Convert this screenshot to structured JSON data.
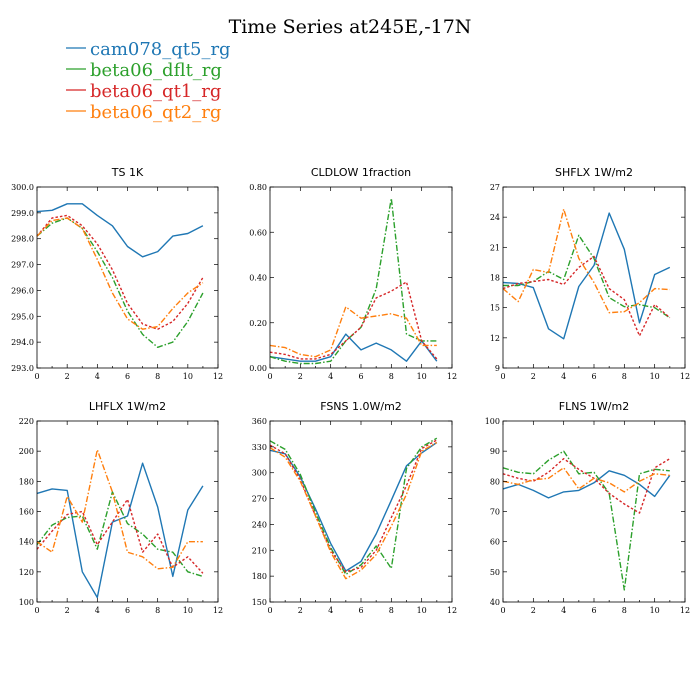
{
  "figure": {
    "title": "Time Series at245E,-17N"
  },
  "legend": [
    {
      "name": "cam078_qt5_rg",
      "color": "#1f77b4",
      "dash": ""
    },
    {
      "name": "beta06_dflt_rg",
      "color": "#2ca02c",
      "dash": "6 2 1.5 2"
    },
    {
      "name": "beta06_qt1_rg",
      "color": "#d62728",
      "dash": "2.5 2"
    },
    {
      "name": "beta06_qt2_rg",
      "color": "#ff7f0e",
      "dash": "6 2 1.5 2"
    }
  ],
  "chart_data": [
    {
      "type": "line",
      "title": "TS   1K",
      "x": [
        0,
        1,
        2,
        3,
        4,
        5,
        6,
        7,
        8,
        9,
        10,
        11
      ],
      "xlim": [
        0,
        12
      ],
      "xticks": [
        "0",
        "2",
        "4",
        "6",
        "8",
        "10",
        "12"
      ],
      "ylim": [
        293.0,
        300.0
      ],
      "yticks": [
        "293.0",
        "294.0",
        "295.0",
        "296.0",
        "297.0",
        "298.0",
        "299.0",
        "300.0"
      ],
      "series": [
        {
          "name": "cam078_qt5_rg",
          "values": [
            299.05,
            299.1,
            299.35,
            299.35,
            298.9,
            298.5,
            297.7,
            297.3,
            297.5,
            298.1,
            298.2,
            298.5
          ]
        },
        {
          "name": "beta06_dflt_rg",
          "values": [
            298.1,
            298.6,
            298.8,
            298.4,
            297.5,
            296.5,
            295.2,
            294.3,
            293.8,
            294.0,
            294.8,
            295.9
          ]
        },
        {
          "name": "beta06_qt1_rg",
          "values": [
            298.1,
            298.8,
            298.9,
            298.5,
            297.8,
            296.8,
            295.5,
            294.7,
            294.5,
            294.8,
            295.5,
            296.5
          ]
        },
        {
          "name": "beta06_qt2_rg",
          "values": [
            298.1,
            298.7,
            298.8,
            298.4,
            297.2,
            295.9,
            294.9,
            294.5,
            294.6,
            295.3,
            295.9,
            296.3
          ]
        }
      ]
    },
    {
      "type": "line",
      "title": "CLDLOW   1fraction",
      "x": [
        0,
        1,
        2,
        3,
        4,
        5,
        6,
        7,
        8,
        9,
        10,
        11
      ],
      "xlim": [
        0,
        12
      ],
      "xticks": [
        "0",
        "2",
        "4",
        "6",
        "8",
        "10",
        "12"
      ],
      "ylim": [
        0.0,
        0.8
      ],
      "yticks": [
        "0.00",
        "0.20",
        "0.40",
        "0.60",
        "0.80"
      ],
      "series": [
        {
          "name": "cam078_qt5_rg",
          "values": [
            0.05,
            0.04,
            0.03,
            0.03,
            0.05,
            0.15,
            0.08,
            0.11,
            0.08,
            0.03,
            0.12,
            0.03
          ]
        },
        {
          "name": "beta06_dflt_rg",
          "values": [
            0.05,
            0.03,
            0.02,
            0.02,
            0.03,
            0.12,
            0.18,
            0.35,
            0.75,
            0.15,
            0.12,
            0.12
          ]
        },
        {
          "name": "beta06_qt1_rg",
          "values": [
            0.07,
            0.06,
            0.04,
            0.04,
            0.06,
            0.12,
            0.18,
            0.31,
            0.34,
            0.38,
            0.12,
            0.04
          ]
        },
        {
          "name": "beta06_qt2_rg",
          "values": [
            0.1,
            0.09,
            0.06,
            0.05,
            0.08,
            0.27,
            0.22,
            0.23,
            0.24,
            0.22,
            0.1,
            0.1
          ]
        }
      ]
    },
    {
      "type": "line",
      "title": "SHFLX   1W/m2",
      "x": [
        0,
        1,
        2,
        3,
        4,
        5,
        6,
        7,
        8,
        9,
        10,
        11
      ],
      "xlim": [
        0,
        12
      ],
      "xticks": [
        "0",
        "2",
        "4",
        "6",
        "8",
        "10",
        "12"
      ],
      "ylim": [
        9,
        27
      ],
      "yticks": [
        "9",
        "12",
        "15",
        "18",
        "21",
        "24",
        "27"
      ],
      "series": [
        {
          "name": "cam078_qt5_rg",
          "values": [
            17.5,
            17.4,
            17.0,
            12.9,
            11.9,
            17.1,
            19.2,
            24.4,
            20.8,
            13.5,
            18.3,
            19.0
          ]
        },
        {
          "name": "beta06_dflt_rg",
          "values": [
            17.2,
            17.2,
            17.6,
            18.6,
            17.8,
            22.2,
            19.9,
            16.0,
            15.1,
            15.3,
            15.0,
            14.0
          ]
        },
        {
          "name": "beta06_qt1_rg",
          "values": [
            16.9,
            17.4,
            17.6,
            17.8,
            17.3,
            19.0,
            20.1,
            16.9,
            15.8,
            12.2,
            15.3,
            14.0
          ]
        },
        {
          "name": "beta06_qt2_rg",
          "values": [
            16.9,
            15.6,
            18.8,
            18.5,
            24.8,
            19.9,
            17.5,
            14.5,
            14.6,
            15.5,
            16.9,
            16.8
          ]
        }
      ]
    },
    {
      "type": "line",
      "title": "LHFLX   1W/m2",
      "x": [
        0,
        1,
        2,
        3,
        4,
        5,
        6,
        7,
        8,
        9,
        10,
        11
      ],
      "xlim": [
        0,
        12
      ],
      "xticks": [
        "0",
        "2",
        "4",
        "6",
        "8",
        "10",
        "12"
      ],
      "ylim": [
        100,
        220
      ],
      "yticks": [
        "100",
        "120",
        "140",
        "160",
        "180",
        "200",
        "220"
      ],
      "series": [
        {
          "name": "cam078_qt5_rg",
          "values": [
            172,
            175,
            174,
            120,
            103,
            153,
            157,
            192,
            163,
            117,
            161,
            177
          ]
        },
        {
          "name": "beta06_dflt_rg",
          "values": [
            138,
            151,
            156,
            157,
            135,
            173,
            152,
            145,
            135,
            133,
            120,
            117
          ]
        },
        {
          "name": "beta06_qt1_rg",
          "values": [
            135,
            147,
            158,
            160,
            138,
            153,
            168,
            133,
            145,
            123,
            130,
            119
          ]
        },
        {
          "name": "beta06_qt2_rg",
          "values": [
            140,
            133,
            170,
            153,
            201,
            173,
            133,
            130,
            122,
            123,
            140,
            140
          ]
        }
      ]
    },
    {
      "type": "line",
      "title": "FSNS   1.0W/m2",
      "x": [
        0,
        1,
        2,
        3,
        4,
        5,
        6,
        7,
        8,
        9,
        10,
        11
      ],
      "xlim": [
        0,
        12
      ],
      "xticks": [
        "0",
        "2",
        "4",
        "6",
        "8",
        "10",
        "12"
      ],
      "ylim": [
        150,
        360
      ],
      "yticks": [
        "150",
        "180",
        "210",
        "240",
        "270",
        "300",
        "330",
        "360"
      ],
      "series": [
        {
          "name": "cam078_qt5_rg",
          "values": [
            326,
            322,
            295,
            258,
            218,
            186,
            197,
            229,
            268,
            308,
            323,
            335
          ]
        },
        {
          "name": "beta06_dflt_rg",
          "values": [
            337,
            327,
            298,
            254,
            213,
            182,
            193,
            215,
            189,
            305,
            330,
            340
          ]
        },
        {
          "name": "beta06_qt1_rg",
          "values": [
            332,
            322,
            292,
            250,
            210,
            185,
            190,
            210,
            248,
            285,
            328,
            338
          ]
        },
        {
          "name": "beta06_qt2_rg",
          "values": [
            329,
            318,
            290,
            250,
            208,
            177,
            187,
            205,
            238,
            275,
            325,
            335
          ]
        }
      ]
    },
    {
      "type": "line",
      "title": "FLNS   1W/m2",
      "x": [
        0,
        1,
        2,
        3,
        4,
        5,
        6,
        7,
        8,
        9,
        10,
        11
      ],
      "xlim": [
        0,
        12
      ],
      "xticks": [
        "0",
        "2",
        "4",
        "6",
        "8",
        "10",
        "12"
      ],
      "ylim": [
        40,
        100
      ],
      "yticks": [
        "40",
        "50",
        "60",
        "70",
        "80",
        "90",
        "100"
      ],
      "series": [
        {
          "name": "cam078_qt5_rg",
          "values": [
            77.5,
            79,
            77,
            74.5,
            76.5,
            77,
            79.5,
            83.5,
            82,
            79,
            75,
            82
          ]
        },
        {
          "name": "beta06_dflt_rg",
          "values": [
            84.5,
            83,
            82.5,
            87,
            90,
            82.5,
            83,
            76,
            44,
            82.5,
            84,
            83.5
          ]
        },
        {
          "name": "beta06_qt1_rg",
          "values": [
            82.5,
            81,
            80,
            83,
            87.5,
            84,
            81,
            76,
            72.5,
            69.5,
            84.5,
            87.5
          ]
        },
        {
          "name": "beta06_qt2_rg",
          "values": [
            80,
            79,
            80.5,
            81,
            84.5,
            77.5,
            81,
            79.5,
            76.5,
            80,
            82.5,
            82
          ]
        }
      ]
    }
  ]
}
